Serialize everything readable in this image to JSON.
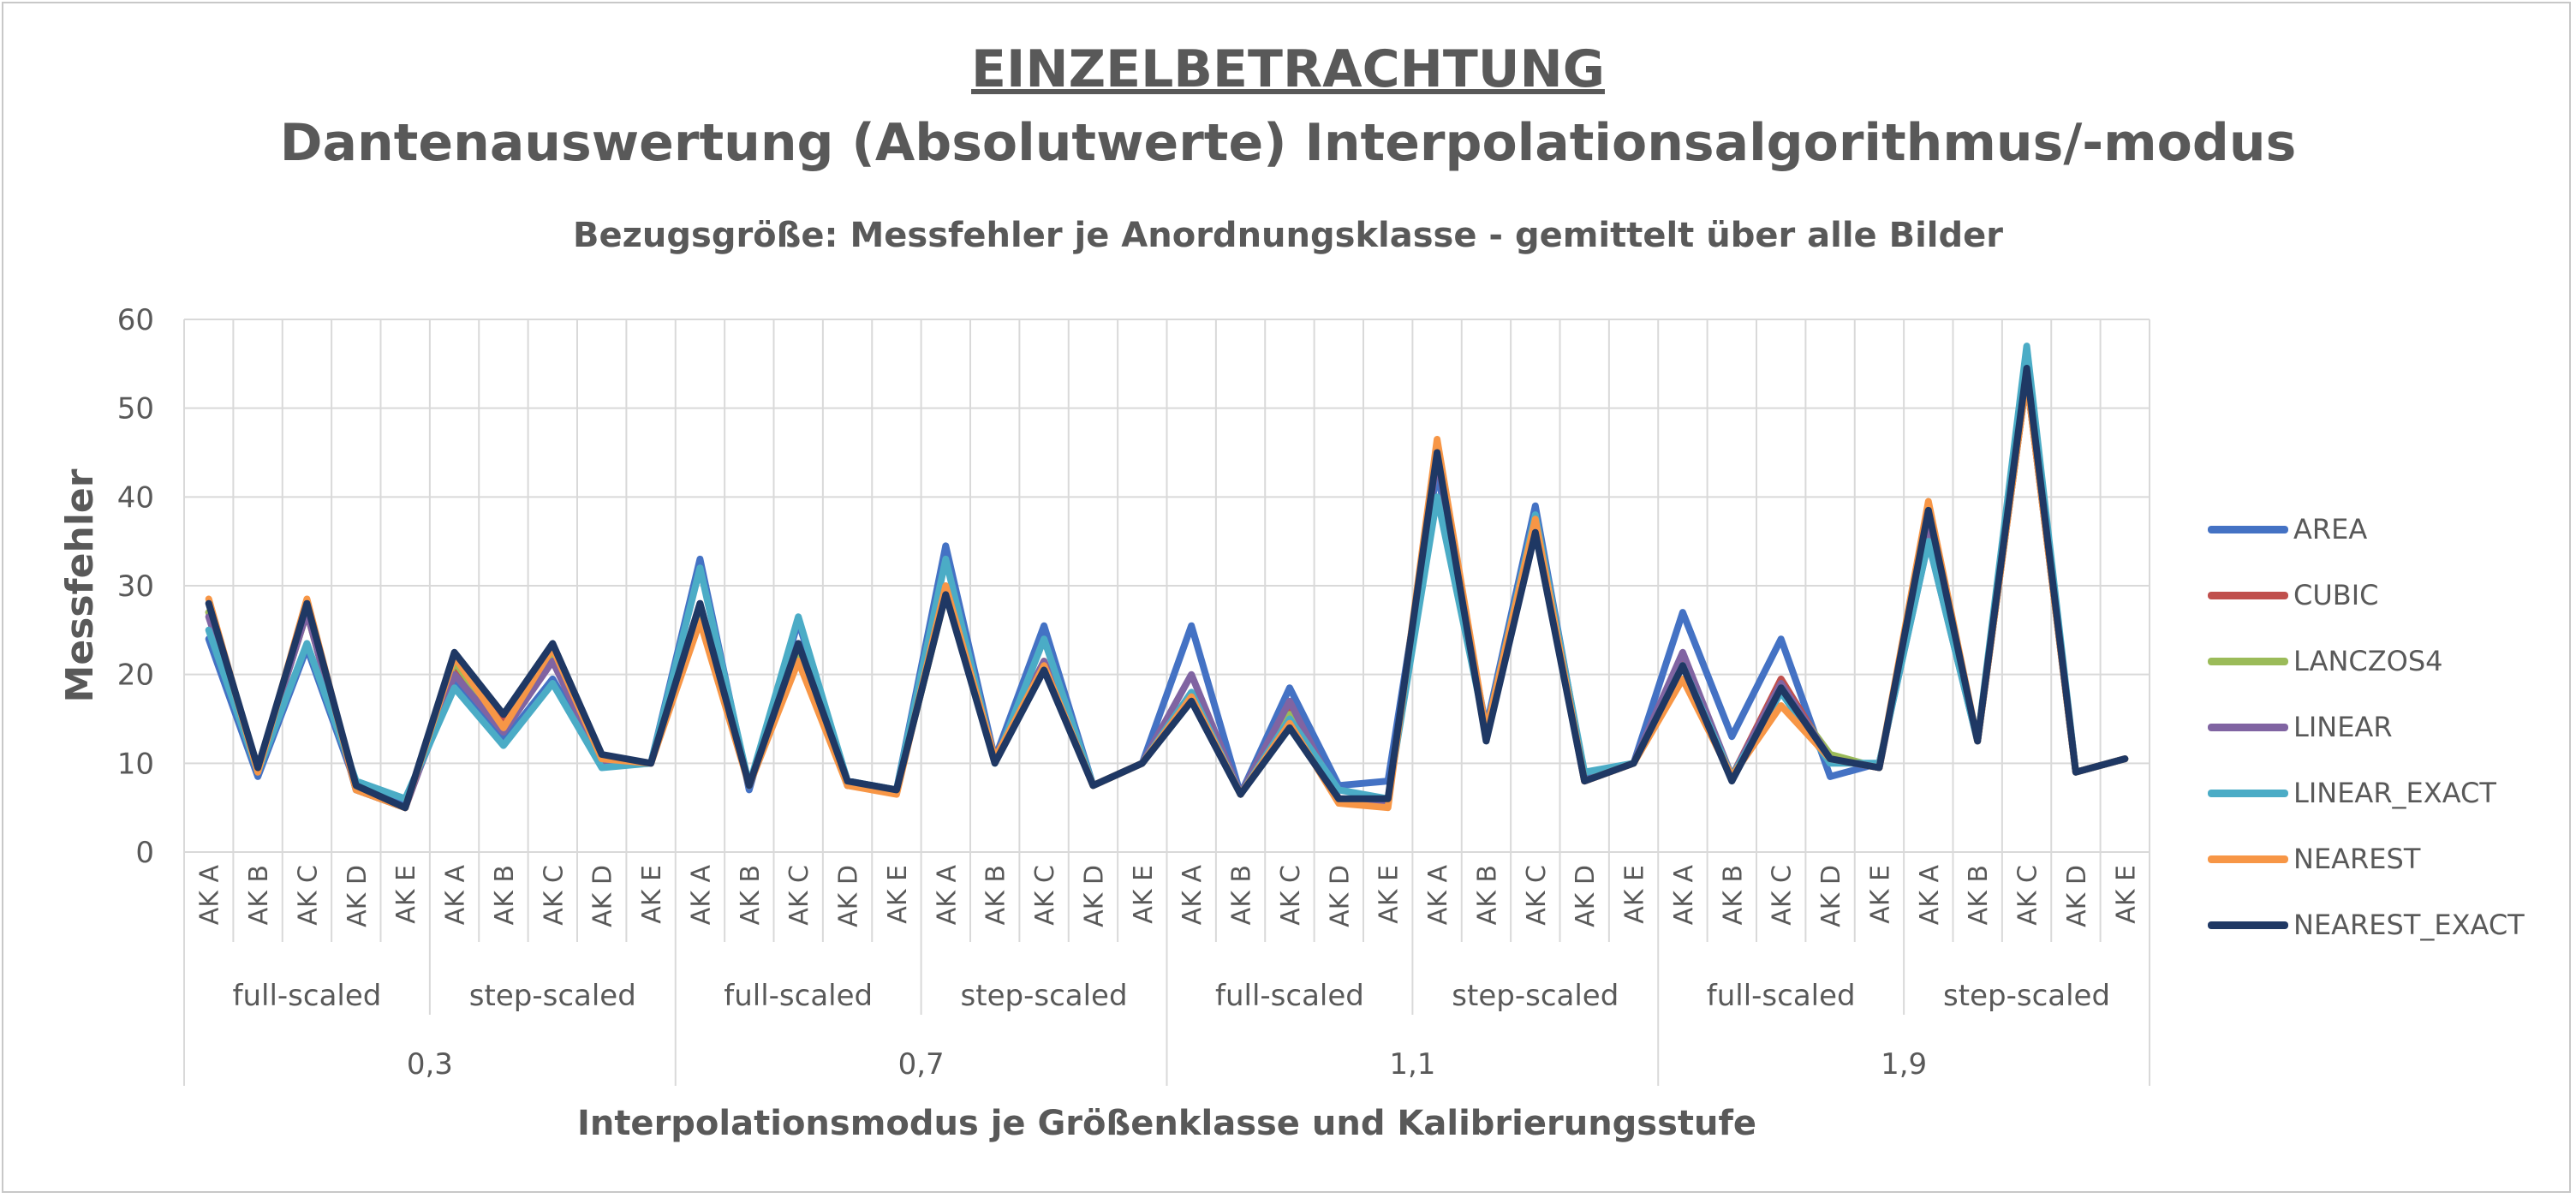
{
  "titles": {
    "main": "EINZELBETRACHTUNG",
    "sub": "Dantenauswertung (Absolutwerte) Interpolationsalgorithmus/-modus",
    "caption": "Bezugsgröße: Messfehler je Anordnungsklasse - gemittelt über alle Bilder"
  },
  "chart_data": {
    "type": "line",
    "ylabel": "Messfehler",
    "xlabel": "Interpolationsmodus je Größenklasse und Kalibrierungsstufe",
    "ylim": [
      0,
      60
    ],
    "yticks": [
      0,
      10,
      20,
      30,
      40,
      50,
      60
    ],
    "grid": true,
    "legend_position": "right",
    "categories": [
      "AK A",
      "AK B",
      "AK C",
      "AK D",
      "AK E",
      "AK A",
      "AK B",
      "AK C",
      "AK D",
      "AK E",
      "AK A",
      "AK B",
      "AK C",
      "AK D",
      "AK E",
      "AK A",
      "AK B",
      "AK C",
      "AK D",
      "AK E",
      "AK A",
      "AK B",
      "AK C",
      "AK D",
      "AK E",
      "AK A",
      "AK B",
      "AK C",
      "AK D",
      "AK E",
      "AK A",
      "AK B",
      "AK C",
      "AK D",
      "AK E",
      "AK A",
      "AK B",
      "AK C",
      "AK D",
      "AK E"
    ],
    "modes": [
      "full-scaled",
      "step-scaled",
      "full-scaled",
      "step-scaled",
      "full-scaled",
      "step-scaled",
      "full-scaled",
      "step-scaled"
    ],
    "calibration_levels": [
      "0,3",
      "0,7",
      "1,1",
      "1,9"
    ],
    "series": [
      {
        "name": "AREA",
        "color": "#4472c4",
        "values": [
          24,
          8.5,
          23,
          7.5,
          5.5,
          19,
          12.5,
          19.5,
          10,
          10,
          33,
          7,
          26,
          8,
          7,
          34.5,
          10.5,
          25.5,
          7.5,
          10,
          25.5,
          6.5,
          18.5,
          7.5,
          8,
          43,
          14,
          39,
          8.5,
          10,
          27,
          13,
          24,
          8.5,
          10,
          35,
          12.5,
          55.5,
          9,
          10.5
        ]
      },
      {
        "name": "CUBIC",
        "color": "#c0504d",
        "values": [
          27,
          9.5,
          27,
          7,
          5,
          21,
          14.5,
          22.5,
          10.5,
          10,
          27,
          7.5,
          23,
          7.5,
          7,
          29,
          10.5,
          21,
          7.5,
          10,
          17.5,
          6.5,
          16,
          6,
          5.5,
          45,
          13.5,
          37,
          8,
          10,
          22,
          8.5,
          19.5,
          10.5,
          9.5,
          37,
          12.5,
          53.5,
          9,
          10.5
        ]
      },
      {
        "name": "LANCZOS4",
        "color": "#9bbb59",
        "values": [
          27,
          9.5,
          27,
          7,
          5,
          21.5,
          14,
          22.5,
          10.5,
          10,
          27,
          7.5,
          23,
          7.5,
          7,
          29,
          10.5,
          21.5,
          7.5,
          10,
          17.5,
          6.5,
          15.5,
          6,
          5.5,
          45,
          13.5,
          37,
          8,
          10,
          21,
          8.5,
          18.5,
          11,
          9.5,
          37,
          12.5,
          53.5,
          9,
          10.5
        ]
      },
      {
        "name": "LINEAR",
        "color": "#8064a2",
        "values": [
          26.5,
          9.5,
          27,
          7,
          5,
          20,
          13.5,
          21.5,
          10,
          10,
          28,
          7.5,
          23.5,
          7.5,
          7,
          29.5,
          10.5,
          21.5,
          7.5,
          10,
          20,
          6.5,
          17,
          6,
          5.5,
          44.5,
          13.5,
          36.5,
          8,
          10,
          22.5,
          8.5,
          19,
          10.5,
          9.5,
          37,
          12.5,
          53.5,
          9,
          10.5
        ]
      },
      {
        "name": "LINEAR_EXACT",
        "color": "#4bacc6",
        "values": [
          25,
          9,
          23.5,
          8,
          6,
          18.5,
          12,
          19,
          9.5,
          10,
          32,
          7.5,
          26.5,
          8,
          7,
          33,
          10,
          24,
          7.5,
          10,
          18,
          6.5,
          15,
          7,
          6,
          40,
          13.5,
          38,
          9,
          10,
          21,
          8.5,
          18,
          10,
          10,
          35,
          12.5,
          57,
          9,
          10.5
        ]
      },
      {
        "name": "NEAREST",
        "color": "#f79646",
        "values": [
          28.5,
          9,
          28.5,
          7,
          5,
          22,
          14,
          23,
          10.5,
          10,
          26,
          7.5,
          21.5,
          7.5,
          6.5,
          30,
          10.5,
          21,
          7.5,
          10,
          17.5,
          6.5,
          14.5,
          5.5,
          5,
          46.5,
          13.5,
          37.5,
          8,
          10,
          19.5,
          8.5,
          16.5,
          10.5,
          9.5,
          39.5,
          12.5,
          53.5,
          9,
          10.5
        ]
      },
      {
        "name": "NEAREST_EXACT",
        "color": "#1f3864",
        "values": [
          28,
          9.5,
          28,
          7.5,
          5,
          22.5,
          15.5,
          23.5,
          11,
          10,
          28,
          7.5,
          23.5,
          8,
          7,
          29,
          10,
          20.5,
          7.5,
          10,
          17,
          6.5,
          14,
          6,
          6,
          45,
          12.5,
          36,
          8,
          10,
          21,
          8,
          18.5,
          10.5,
          9.5,
          38.5,
          12.5,
          54.5,
          9,
          10.5
        ]
      }
    ]
  }
}
